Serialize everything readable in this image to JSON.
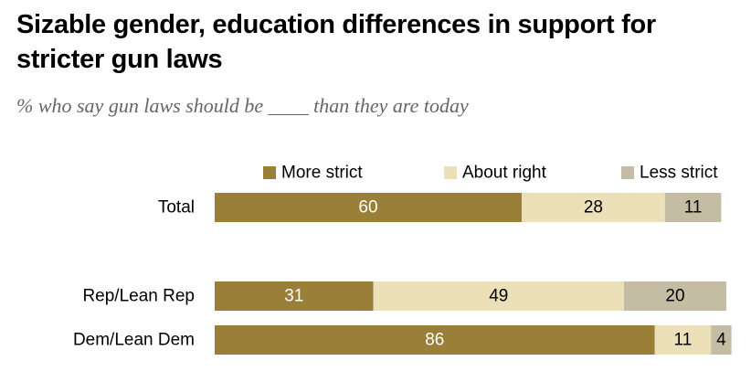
{
  "title": "Sizable gender, education differences in support for stricter gun laws",
  "subtitle": "% who say gun laws should be ____ than they are today",
  "chart_data": {
    "type": "bar",
    "orientation": "horizontal",
    "stacked": true,
    "legend_position": "top",
    "categories": [
      "Total",
      "Rep/Lean Rep",
      "Dem/Lean Dem"
    ],
    "series": [
      {
        "name": "More strict",
        "values": [
          60,
          31,
          86
        ],
        "color": "#9a7f38",
        "label_color": "#ffffff"
      },
      {
        "name": "About right",
        "values": [
          28,
          49,
          11
        ],
        "color": "#ece0b8",
        "label_color": "#000000"
      },
      {
        "name": "Less strict",
        "values": [
          11,
          20,
          4
        ],
        "color": "#c4bca3",
        "label_color": "#000000"
      }
    ],
    "xlim": [
      0,
      100
    ],
    "grid": false
  }
}
